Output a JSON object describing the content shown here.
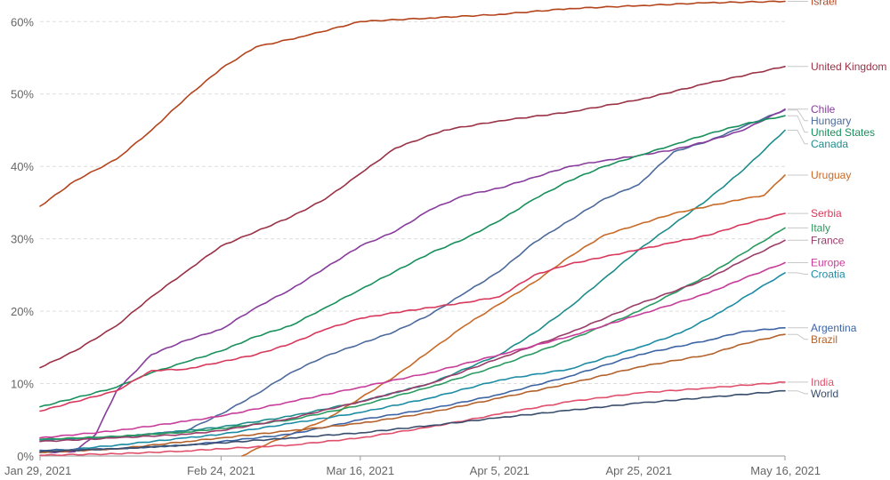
{
  "chart_data": {
    "type": "line",
    "title": "",
    "xlabel": "",
    "ylabel": "",
    "x_ticks": [
      "Jan 29, 2021",
      "Feb 24, 2021",
      "Mar 16, 2021",
      "Apr 5, 2021",
      "Apr 25, 2021",
      "May 16, 2021"
    ],
    "y_ticks": [
      "0%",
      "10%",
      "20%",
      "30%",
      "40%",
      "50%",
      "60%"
    ],
    "ylim": [
      0,
      62
    ],
    "xlim": [
      "2021-01-29",
      "2021-05-16"
    ],
    "grid": "horizontal dashed",
    "legend": "labels at right end of lines",
    "series": [
      {
        "name": "Israel",
        "color": "#b4441c",
        "points": [
          [
            "2021-01-29",
            34.5
          ],
          [
            "2021-02-03",
            38
          ],
          [
            "2021-02-09",
            41
          ],
          [
            "2021-02-14",
            45
          ],
          [
            "2021-02-19",
            49.5
          ],
          [
            "2021-02-24",
            53.5
          ],
          [
            "2021-03-01",
            56.5
          ],
          [
            "2021-03-08",
            58
          ],
          [
            "2021-03-16",
            60
          ],
          [
            "2021-03-26",
            60.5
          ],
          [
            "2021-04-05",
            61
          ],
          [
            "2021-04-15",
            61.8
          ],
          [
            "2021-04-25",
            62.2
          ],
          [
            "2021-05-05",
            62.6
          ],
          [
            "2021-05-16",
            62.8
          ]
        ]
      },
      {
        "name": "United Kingdom",
        "color": "#9a3246",
        "points": [
          [
            "2021-01-29",
            12.2
          ],
          [
            "2021-02-03",
            14.5
          ],
          [
            "2021-02-09",
            18
          ],
          [
            "2021-02-14",
            22
          ],
          [
            "2021-02-19",
            25.5
          ],
          [
            "2021-02-24",
            29
          ],
          [
            "2021-03-01",
            31
          ],
          [
            "2021-03-06",
            33
          ],
          [
            "2021-03-11",
            35.5
          ],
          [
            "2021-03-16",
            39
          ],
          [
            "2021-03-21",
            42.5
          ],
          [
            "2021-03-28",
            45
          ],
          [
            "2021-04-05",
            46.3
          ],
          [
            "2021-04-15",
            47.5
          ],
          [
            "2021-04-25",
            49.2
          ],
          [
            "2021-05-05",
            51.5
          ],
          [
            "2021-05-16",
            53.8
          ]
        ]
      },
      {
        "name": "Hungary",
        "color": "#4c6a9c",
        "points": [
          [
            "2021-01-29",
            2.3
          ],
          [
            "2021-02-09",
            2.6
          ],
          [
            "2021-02-19",
            3.5
          ],
          [
            "2021-02-24",
            5.8
          ],
          [
            "2021-03-01",
            8.5
          ],
          [
            "2021-03-06",
            11.5
          ],
          [
            "2021-03-11",
            13.8
          ],
          [
            "2021-03-16",
            15.5
          ],
          [
            "2021-03-21",
            17.2
          ],
          [
            "2021-03-26",
            19.5
          ],
          [
            "2021-03-31",
            22.5
          ],
          [
            "2021-04-05",
            25.5
          ],
          [
            "2021-04-10",
            29.5
          ],
          [
            "2021-04-15",
            32.5
          ],
          [
            "2021-04-20",
            35.5
          ],
          [
            "2021-04-25",
            37.5
          ],
          [
            "2021-04-30",
            42
          ],
          [
            "2021-05-05",
            43.5
          ],
          [
            "2021-05-10",
            45.5
          ],
          [
            "2021-05-16",
            47.8
          ]
        ]
      },
      {
        "name": "Chile",
        "color": "#883c9c",
        "points": [
          [
            "2021-01-29",
            0.5
          ],
          [
            "2021-02-03",
            0.6
          ],
          [
            "2021-02-06",
            3
          ],
          [
            "2021-02-09",
            9
          ],
          [
            "2021-02-14",
            14
          ],
          [
            "2021-02-19",
            16
          ],
          [
            "2021-02-24",
            17.5
          ],
          [
            "2021-03-01",
            20.5
          ],
          [
            "2021-03-06",
            23
          ],
          [
            "2021-03-11",
            26
          ],
          [
            "2021-03-16",
            29
          ],
          [
            "2021-03-21",
            31
          ],
          [
            "2021-03-26",
            34
          ],
          [
            "2021-03-31",
            36
          ],
          [
            "2021-04-05",
            37
          ],
          [
            "2021-04-10",
            38.5
          ],
          [
            "2021-04-15",
            40
          ],
          [
            "2021-04-20",
            40.8
          ],
          [
            "2021-04-25",
            41.5
          ],
          [
            "2021-04-30",
            42.3
          ],
          [
            "2021-05-05",
            43.5
          ],
          [
            "2021-05-10",
            45
          ],
          [
            "2021-05-16",
            47.9
          ]
        ]
      },
      {
        "name": "United States",
        "color": "#18905c",
        "points": [
          [
            "2021-01-29",
            6.8
          ],
          [
            "2021-02-03",
            8
          ],
          [
            "2021-02-09",
            9.5
          ],
          [
            "2021-02-14",
            11.5
          ],
          [
            "2021-02-19",
            13
          ],
          [
            "2021-02-24",
            14.5
          ],
          [
            "2021-03-01",
            16.5
          ],
          [
            "2021-03-06",
            18
          ],
          [
            "2021-03-11",
            20.5
          ],
          [
            "2021-03-16",
            23
          ],
          [
            "2021-03-21",
            25.5
          ],
          [
            "2021-03-26",
            28
          ],
          [
            "2021-03-31",
            30
          ],
          [
            "2021-04-05",
            32.5
          ],
          [
            "2021-04-10",
            35.5
          ],
          [
            "2021-04-15",
            38
          ],
          [
            "2021-04-20",
            40
          ],
          [
            "2021-04-25",
            41.5
          ],
          [
            "2021-04-30",
            43
          ],
          [
            "2021-05-05",
            44.5
          ],
          [
            "2021-05-10",
            45.8
          ],
          [
            "2021-05-16",
            47
          ]
        ]
      },
      {
        "name": "Canada",
        "color": "#1e8c8c",
        "points": [
          [
            "2021-01-29",
            2.2
          ],
          [
            "2021-02-09",
            2.6
          ],
          [
            "2021-02-19",
            3.5
          ],
          [
            "2021-02-24",
            4
          ],
          [
            "2021-03-06",
            5.5
          ],
          [
            "2021-03-16",
            7.5
          ],
          [
            "2021-03-26",
            10
          ],
          [
            "2021-04-05",
            14
          ],
          [
            "2021-04-10",
            17
          ],
          [
            "2021-04-15",
            20.5
          ],
          [
            "2021-04-20",
            24.5
          ],
          [
            "2021-04-25",
            28.5
          ],
          [
            "2021-04-30",
            32
          ],
          [
            "2021-05-05",
            35.5
          ],
          [
            "2021-05-10",
            39.5
          ],
          [
            "2021-05-16",
            45
          ]
        ]
      },
      {
        "name": "Uruguay",
        "color": "#c86a28",
        "points": [
          [
            "2021-02-27",
            0
          ],
          [
            "2021-03-01",
            1
          ],
          [
            "2021-03-06",
            3
          ],
          [
            "2021-03-11",
            5
          ],
          [
            "2021-03-16",
            8
          ],
          [
            "2021-03-21",
            11
          ],
          [
            "2021-03-26",
            14.5
          ],
          [
            "2021-03-31",
            18
          ],
          [
            "2021-04-05",
            21
          ],
          [
            "2021-04-10",
            24
          ],
          [
            "2021-04-15",
            27.5
          ],
          [
            "2021-04-20",
            30.5
          ],
          [
            "2021-04-25",
            32
          ],
          [
            "2021-04-30",
            33.5
          ],
          [
            "2021-05-05",
            34.5
          ],
          [
            "2021-05-10",
            35.5
          ],
          [
            "2021-05-13",
            36
          ],
          [
            "2021-05-16",
            38.8
          ]
        ]
      },
      {
        "name": "Serbia",
        "color": "#d7385c",
        "points": [
          [
            "2021-01-29",
            6.2
          ],
          [
            "2021-02-03",
            7.5
          ],
          [
            "2021-02-09",
            9
          ],
          [
            "2021-02-14",
            11.8
          ],
          [
            "2021-02-19",
            12
          ],
          [
            "2021-02-24",
            13
          ],
          [
            "2021-03-01",
            14
          ],
          [
            "2021-03-06",
            15.5
          ],
          [
            "2021-03-11",
            17.5
          ],
          [
            "2021-03-16",
            19
          ],
          [
            "2021-03-21",
            19.8
          ],
          [
            "2021-03-26",
            20.5
          ],
          [
            "2021-03-31",
            21.2
          ],
          [
            "2021-04-05",
            22
          ],
          [
            "2021-04-10",
            25
          ],
          [
            "2021-04-15",
            26.5
          ],
          [
            "2021-04-20",
            27.5
          ],
          [
            "2021-04-25",
            28.5
          ],
          [
            "2021-04-30",
            29.5
          ],
          [
            "2021-05-05",
            30.5
          ],
          [
            "2021-05-10",
            32
          ],
          [
            "2021-05-16",
            33.5
          ]
        ]
      },
      {
        "name": "Italy",
        "color": "#2a9a60",
        "points": [
          [
            "2021-01-29",
            2.3
          ],
          [
            "2021-02-09",
            2.7
          ],
          [
            "2021-02-19",
            3.3
          ],
          [
            "2021-02-24",
            3.8
          ],
          [
            "2021-03-06",
            5
          ],
          [
            "2021-03-16",
            7
          ],
          [
            "2021-03-26",
            9.5
          ],
          [
            "2021-04-05",
            12.5
          ],
          [
            "2021-04-15",
            16
          ],
          [
            "2021-04-25",
            20
          ],
          [
            "2021-05-05",
            25
          ],
          [
            "2021-05-10",
            28
          ],
          [
            "2021-05-16",
            31.5
          ]
        ]
      },
      {
        "name": "France",
        "color": "#9a3c6a",
        "points": [
          [
            "2021-01-29",
            2
          ],
          [
            "2021-02-09",
            2.5
          ],
          [
            "2021-02-19",
            3
          ],
          [
            "2021-02-24",
            3.5
          ],
          [
            "2021-03-06",
            5.2
          ],
          [
            "2021-03-16",
            7.5
          ],
          [
            "2021-03-26",
            10
          ],
          [
            "2021-04-05",
            13.5
          ],
          [
            "2021-04-15",
            17
          ],
          [
            "2021-04-25",
            21
          ],
          [
            "2021-05-05",
            24.5
          ],
          [
            "2021-05-10",
            27
          ],
          [
            "2021-05-16",
            29.8
          ]
        ]
      },
      {
        "name": "Europe",
        "color": "#c83c9a",
        "points": [
          [
            "2021-01-29",
            2.5
          ],
          [
            "2021-02-09",
            3.5
          ],
          [
            "2021-02-19",
            4.8
          ],
          [
            "2021-02-24",
            5.5
          ],
          [
            "2021-03-06",
            7.5
          ],
          [
            "2021-03-16",
            9.5
          ],
          [
            "2021-03-26",
            11.5
          ],
          [
            "2021-04-05",
            14
          ],
          [
            "2021-04-15",
            16.5
          ],
          [
            "2021-04-25",
            19.5
          ],
          [
            "2021-05-05",
            22.5
          ],
          [
            "2021-05-10",
            24.5
          ],
          [
            "2021-05-16",
            26.7
          ]
        ]
      },
      {
        "name": "Croatia",
        "color": "#1c8ca4",
        "points": [
          [
            "2021-01-29",
            0.5
          ],
          [
            "2021-02-09",
            1.5
          ],
          [
            "2021-02-19",
            2.5
          ],
          [
            "2021-02-24",
            3
          ],
          [
            "2021-03-06",
            4.5
          ],
          [
            "2021-03-16",
            6
          ],
          [
            "2021-03-26",
            8
          ],
          [
            "2021-04-05",
            10.5
          ],
          [
            "2021-04-15",
            12
          ],
          [
            "2021-04-25",
            15
          ],
          [
            "2021-05-01",
            17
          ],
          [
            "2021-05-07",
            20
          ],
          [
            "2021-05-12",
            23
          ],
          [
            "2021-05-16",
            25.3
          ]
        ]
      },
      {
        "name": "Argentina",
        "color": "#3c64a4",
        "points": [
          [
            "2021-01-29",
            0.8
          ],
          [
            "2021-02-09",
            1
          ],
          [
            "2021-02-19",
            1.5
          ],
          [
            "2021-02-24",
            2
          ],
          [
            "2021-03-06",
            3
          ],
          [
            "2021-03-16",
            5
          ],
          [
            "2021-03-26",
            6.5
          ],
          [
            "2021-04-05",
            8.5
          ],
          [
            "2021-04-15",
            11
          ],
          [
            "2021-04-25",
            14
          ],
          [
            "2021-05-05",
            16
          ],
          [
            "2021-05-10",
            17.2
          ],
          [
            "2021-05-16",
            17.7
          ]
        ]
      },
      {
        "name": "Brazil",
        "color": "#b4622c",
        "points": [
          [
            "2021-01-29",
            0.5
          ],
          [
            "2021-02-09",
            1
          ],
          [
            "2021-02-19",
            2
          ],
          [
            "2021-02-24",
            2.5
          ],
          [
            "2021-03-06",
            3.5
          ],
          [
            "2021-03-16",
            4.5
          ],
          [
            "2021-03-26",
            6
          ],
          [
            "2021-04-05",
            8
          ],
          [
            "2021-04-15",
            10
          ],
          [
            "2021-04-25",
            12.3
          ],
          [
            "2021-05-05",
            14
          ],
          [
            "2021-05-10",
            15.5
          ],
          [
            "2021-05-16",
            16.8
          ]
        ]
      },
      {
        "name": "India",
        "color": "#e0506c",
        "points": [
          [
            "2021-01-29",
            0.1
          ],
          [
            "2021-02-09",
            0.3
          ],
          [
            "2021-02-19",
            0.7
          ],
          [
            "2021-02-24",
            1
          ],
          [
            "2021-03-06",
            1.5
          ],
          [
            "2021-03-16",
            2.5
          ],
          [
            "2021-03-26",
            4
          ],
          [
            "2021-04-05",
            5.8
          ],
          [
            "2021-04-15",
            7.5
          ],
          [
            "2021-04-25",
            8.7
          ],
          [
            "2021-05-05",
            9.4
          ],
          [
            "2021-05-16",
            10.2
          ]
        ]
      },
      {
        "name": "World",
        "color": "#384c6c",
        "points": [
          [
            "2021-01-29",
            0.6
          ],
          [
            "2021-02-09",
            1
          ],
          [
            "2021-02-19",
            1.5
          ],
          [
            "2021-02-24",
            1.8
          ],
          [
            "2021-03-06",
            2.5
          ],
          [
            "2021-03-16",
            3.2
          ],
          [
            "2021-03-26",
            4.2
          ],
          [
            "2021-04-05",
            5.3
          ],
          [
            "2021-04-15",
            6.3
          ],
          [
            "2021-04-25",
            7.3
          ],
          [
            "2021-05-05",
            8.1
          ],
          [
            "2021-05-16",
            9
          ]
        ]
      }
    ]
  }
}
